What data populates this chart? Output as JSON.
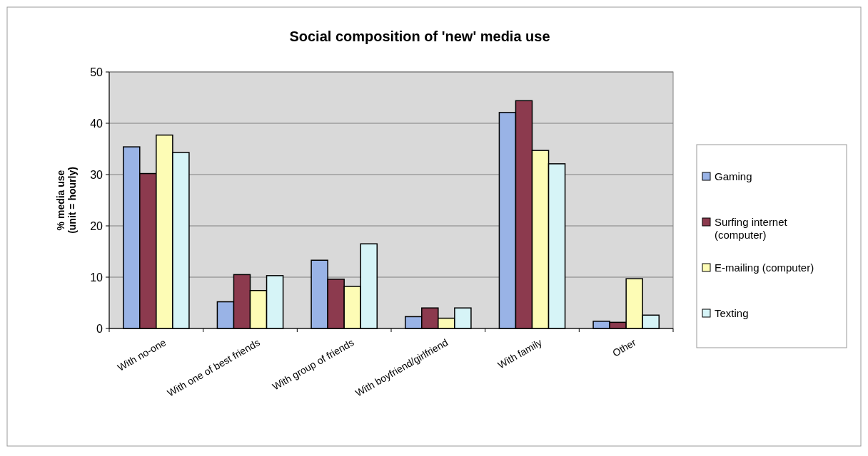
{
  "chart_data": {
    "type": "bar",
    "title": "Social composition of 'new' media use",
    "ylabel": "% media use\n(unit = hourly)",
    "categories": [
      "With no-one",
      "With one of best friends",
      "With group of friends",
      "With boyfriend/girlfriend",
      "With family",
      "Other"
    ],
    "series": [
      {
        "name": "Gaming",
        "color": "#99b3e6",
        "values": [
          35.4,
          5.2,
          13.3,
          2.3,
          42.1,
          1.4
        ]
      },
      {
        "name": "Surfing internet (computer)",
        "color": "#8c3a4e",
        "values": [
          30.2,
          10.5,
          9.6,
          4.0,
          44.4,
          1.2
        ]
      },
      {
        "name": "E-mailing (computer)",
        "color": "#fdfcb5",
        "values": [
          37.7,
          7.4,
          8.2,
          2.0,
          34.7,
          9.7
        ]
      },
      {
        "name": "Texting",
        "color": "#d6f4f7",
        "values": [
          34.3,
          10.3,
          16.5,
          4.0,
          32.1,
          2.6
        ]
      }
    ],
    "ylim": [
      0,
      50
    ],
    "yticks": [
      0,
      10,
      20,
      30,
      40,
      50
    ],
    "grid": "y",
    "legend": "right"
  }
}
